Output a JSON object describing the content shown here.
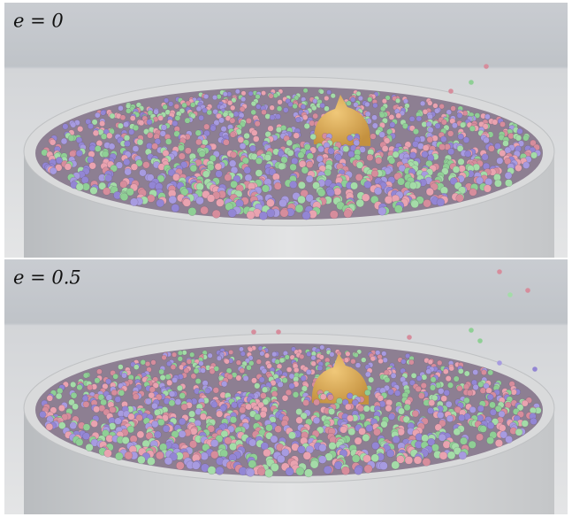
{
  "panels": [
    {
      "label": "e = 0"
    },
    {
      "label": "e = 0.5"
    }
  ]
}
